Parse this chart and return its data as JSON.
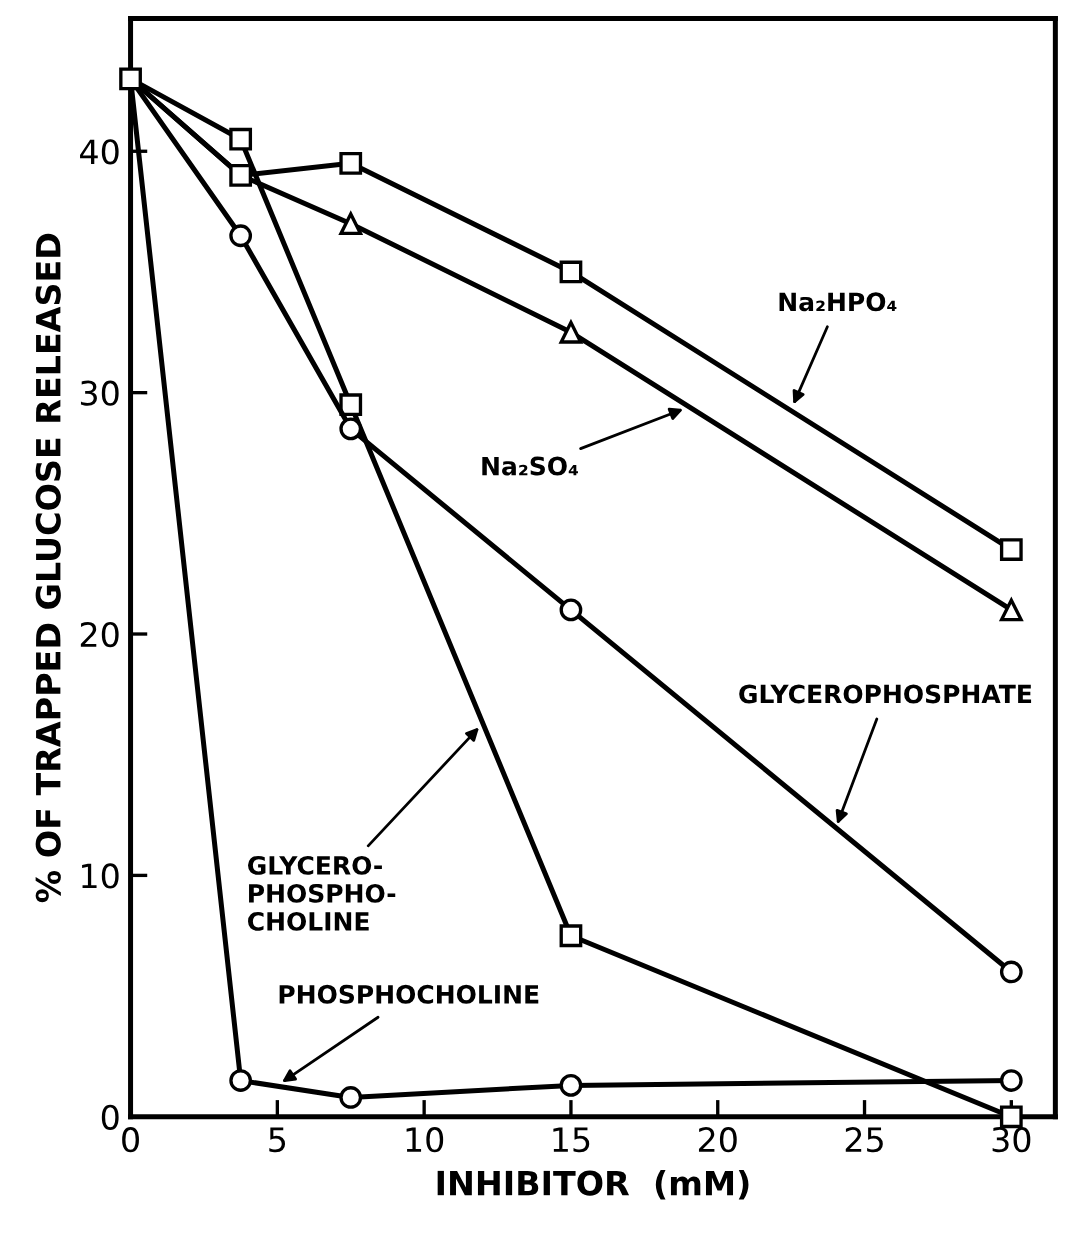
{
  "chart_data": {
    "type": "line",
    "xlabel": "INHIBITOR  (mM)",
    "ylabel": "% OF TRAPPED GLUCOSE RELEASED",
    "x": [
      0,
      3.75,
      7.5,
      15,
      30
    ],
    "series": [
      {
        "color": "#000000",
        "marker": "square",
        "values": [
          43,
          39,
          39.5,
          35,
          23.5
        ]
      },
      {
        "color": "#000000",
        "marker": "triangle",
        "values": [
          43,
          39,
          37,
          32.5,
          21
        ]
      },
      {
        "color": "#000000",
        "marker": "circle",
        "values": [
          43,
          36.5,
          28.5,
          21,
          6
        ]
      },
      {
        "color": "#000000",
        "marker": "square",
        "values": [
          43,
          40.5,
          29.5,
          7.5,
          0
        ]
      },
      {
        "color": "#000000",
        "marker": "circle",
        "values": [
          43,
          1.5,
          0.8,
          1.3,
          1.5
        ]
      }
    ],
    "annotations": [
      {
        "text": "Na₂HPO₄",
        "x": 22.5,
        "y": 29.3
      },
      {
        "text": "Na₂SO₄",
        "x": 19,
        "y": 29.4
      },
      {
        "text": "GLYCEROPHOSPHATE",
        "x": 24,
        "y": 11.9
      },
      {
        "text": "GLYCERO-\nPHOSPHO-\nCHOLINE",
        "x": 12,
        "y": 16.3
      },
      {
        "text": "PHOSPHOCHOLINE",
        "x": 5,
        "y": 1.3
      }
    ],
    "xlim": [
      0,
      31.5
    ],
    "ylim": [
      0,
      45.5
    ],
    "xticks": [
      0,
      5,
      10,
      15,
      20,
      25,
      30
    ],
    "yticks": [
      0,
      10,
      20,
      30,
      40
    ],
    "grid": false,
    "legend": false,
    "line_style": "solid"
  }
}
